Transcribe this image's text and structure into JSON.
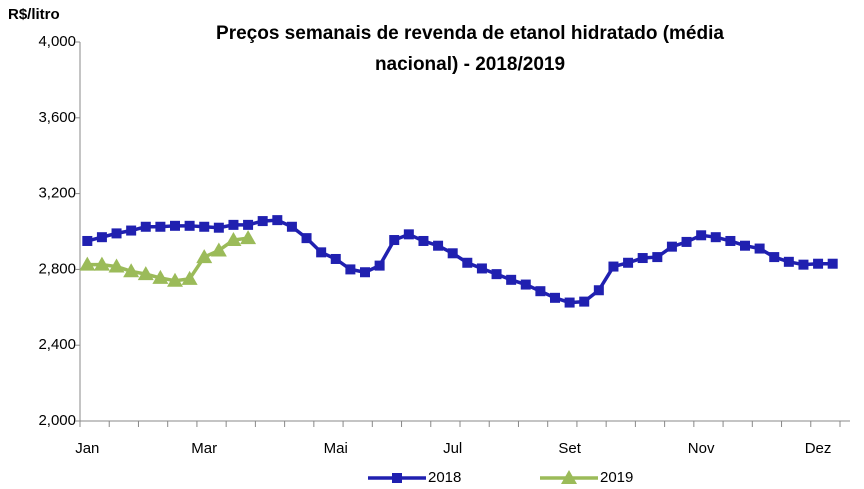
{
  "chart_data": {
    "type": "line",
    "title": [
      "Preços  semanais de revenda de etanol hidratado (média",
      "nacional) - 2018/2019"
    ],
    "y_label": "R$/litro",
    "categories": [
      "Jan",
      null,
      null,
      null,
      null,
      null,
      null,
      null,
      "Mar",
      null,
      null,
      null,
      null,
      null,
      null,
      null,
      null,
      "Mai",
      null,
      null,
      null,
      null,
      null,
      null,
      null,
      "Jul",
      null,
      null,
      null,
      null,
      null,
      null,
      null,
      "Set",
      null,
      null,
      null,
      null,
      null,
      null,
      null,
      null,
      "Nov",
      null,
      null,
      null,
      null,
      null,
      null,
      null,
      "Dez",
      null
    ],
    "series": [
      {
        "name": "2018",
        "color": "#2020b0",
        "marker": "square",
        "values": [
          2950,
          2970,
          2990,
          3005,
          3025,
          3025,
          3030,
          3030,
          3025,
          3020,
          3035,
          3035,
          3055,
          3060,
          3025,
          2965,
          2890,
          2855,
          2800,
          2785,
          2820,
          2955,
          2985,
          2950,
          2925,
          2885,
          2835,
          2805,
          2775,
          2745,
          2720,
          2685,
          2650,
          2625,
          2630,
          2690,
          2815,
          2835,
          2860,
          2865,
          2920,
          2945,
          2980,
          2970,
          2950,
          2925,
          2910,
          2865,
          2840,
          2825,
          2830,
          2830
        ]
      },
      {
        "name": "2019",
        "color": "#9bbb59",
        "marker": "triangle",
        "values": [
          2825,
          2825,
          2815,
          2790,
          2775,
          2755,
          2740,
          2750,
          2865,
          2900,
          2955,
          2965,
          null,
          null,
          null,
          null,
          null,
          null,
          null,
          null,
          null,
          null,
          null,
          null,
          null,
          null,
          null,
          null,
          null,
          null,
          null,
          null,
          null,
          null,
          null,
          null,
          null,
          null,
          null,
          null,
          null,
          null,
          null,
          null,
          null,
          null,
          null,
          null,
          null,
          null,
          null,
          null
        ]
      }
    ],
    "ylim": [
      2000,
      4000
    ],
    "yticks": [
      {
        "value": 2000,
        "label": "2,000"
      },
      {
        "value": 2400,
        "label": "2,400"
      },
      {
        "value": 2800,
        "label": "2,800"
      },
      {
        "value": 3200,
        "label": "3,200"
      },
      {
        "value": 3600,
        "label": "3,600"
      },
      {
        "value": 4000,
        "label": "4,000"
      }
    ],
    "grid": false,
    "legend": "bottom"
  }
}
